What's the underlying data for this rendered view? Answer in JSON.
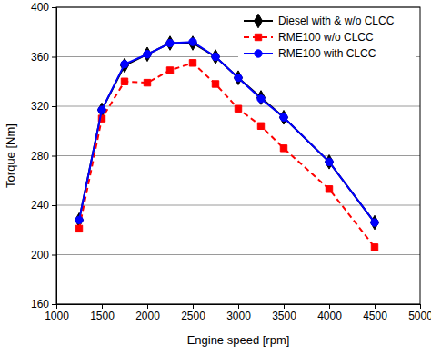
{
  "chart_data": {
    "type": "line",
    "x_label": "Engine speed [rpm]",
    "y_label": "Torque [Nm]",
    "x": [
      1250,
      1500,
      1750,
      2000,
      2250,
      2500,
      2750,
      3000,
      3250,
      3500,
      4000,
      4500
    ],
    "series": [
      {
        "name": "Diesel with & w/o CLCC",
        "color": "#000000",
        "marker": "diamond",
        "line_style": "solid",
        "values": [
          228,
          317,
          353,
          362,
          371,
          371,
          360,
          343,
          327,
          311,
          275,
          226
        ]
      },
      {
        "name": "RME100 w/o CLCC",
        "color": "#ff0000",
        "marker": "square",
        "line_style": "dashed",
        "values": [
          221,
          310,
          340,
          339,
          349,
          355,
          338,
          318,
          304,
          286,
          253,
          206
        ]
      },
      {
        "name": "RME100 with CLCC",
        "color": "#0000ff",
        "marker": "circle",
        "line_style": "solid",
        "values": [
          228,
          317,
          354,
          362,
          371,
          372,
          360,
          343,
          326,
          311,
          275,
          226
        ]
      }
    ],
    "xlim": [
      1000,
      5000
    ],
    "xticks": [
      1000,
      1500,
      2000,
      2500,
      3000,
      3500,
      4000,
      4500,
      5000
    ],
    "ylim": [
      160,
      400
    ],
    "yticks": [
      160,
      200,
      240,
      280,
      320,
      360,
      400
    ],
    "grid": true,
    "legend": "upper right"
  }
}
